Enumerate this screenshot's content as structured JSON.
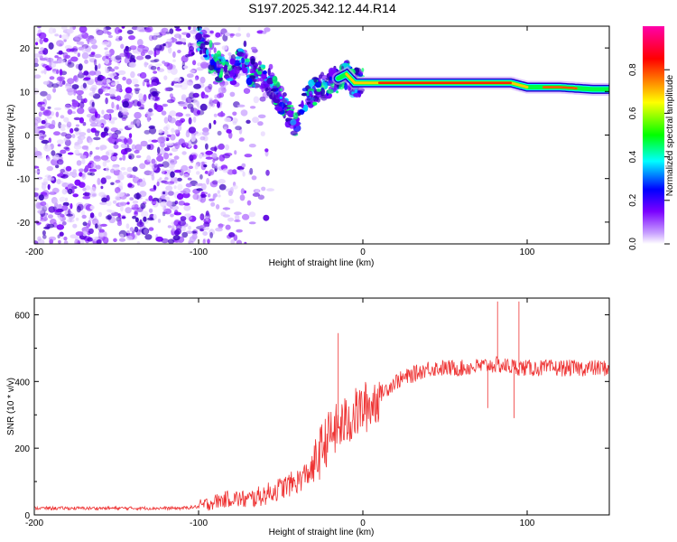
{
  "title": "S197.2025.342.12.44.R14",
  "chart_data": [
    {
      "type": "heatmap",
      "name": "spectrogram",
      "xlabel": "Height of straight line (km)",
      "ylabel": "Frequency (Hz)",
      "xlim": [
        -200,
        150
      ],
      "ylim": [
        -25,
        25
      ],
      "xticks": [
        -200,
        -100,
        0,
        100
      ],
      "yticks": [
        20,
        10,
        0,
        -10,
        -20
      ],
      "xtick_labels": [
        "-200",
        "-100",
        "0",
        "100"
      ],
      "ytick_labels": [
        "20",
        "10",
        "0",
        "-10",
        "-20"
      ],
      "noise_region": {
        "x_start": -200,
        "x_noise_edge": -100,
        "x_fade_end": -65
      },
      "signal_trace": [
        {
          "x": -100,
          "y": 22
        },
        {
          "x": -95,
          "y": 20
        },
        {
          "x": -90,
          "y": 16
        },
        {
          "x": -85,
          "y": 15
        },
        {
          "x": -80,
          "y": 14
        },
        {
          "x": -75,
          "y": 17
        },
        {
          "x": -70,
          "y": 15
        },
        {
          "x": -65,
          "y": 14
        },
        {
          "x": -60,
          "y": 13
        },
        {
          "x": -55,
          "y": 11
        },
        {
          "x": -50,
          "y": 8
        },
        {
          "x": -45,
          "y": 5
        },
        {
          "x": -40,
          "y": 2
        },
        {
          "x": -35,
          "y": 8
        },
        {
          "x": -30,
          "y": 10
        },
        {
          "x": -25,
          "y": 11
        },
        {
          "x": -20,
          "y": 12
        },
        {
          "x": -15,
          "y": 13
        },
        {
          "x": -10,
          "y": 14
        },
        {
          "x": -5,
          "y": 12
        },
        {
          "x": 0,
          "y": 12
        },
        {
          "x": 20,
          "y": 12
        },
        {
          "x": 50,
          "y": 12
        },
        {
          "x": 90,
          "y": 12
        },
        {
          "x": 100,
          "y": 11
        },
        {
          "x": 120,
          "y": 11
        },
        {
          "x": 140,
          "y": 10.5
        },
        {
          "x": 150,
          "y": 10.5
        }
      ],
      "colorbar": {
        "label": "Normalized spectral amplitude",
        "range": [
          0,
          1
        ],
        "ticks": [
          0.0,
          0.2,
          0.4,
          0.6,
          0.8
        ],
        "tick_labels": [
          "0.0",
          "0.2",
          "0.4",
          "0.6",
          "0.8"
        ],
        "colors": [
          "#ffffff",
          "#7a00ff",
          "#0000ff",
          "#00ffff",
          "#00ff00",
          "#ffff00",
          "#ff0000",
          "#ff00aa"
        ]
      }
    },
    {
      "type": "line",
      "name": "snr",
      "xlabel": "Height of straight line (km)",
      "ylabel": "SNR (10 * v/v)",
      "xlim": [
        -200,
        150
      ],
      "ylim": [
        0,
        650
      ],
      "xticks": [
        -200,
        -100,
        0,
        100
      ],
      "yticks": [
        0,
        200,
        400,
        600
      ],
      "xtick_labels": [
        "-200",
        "-100",
        "0",
        "100"
      ],
      "ytick_labels": [
        "0",
        "200",
        "400",
        "600"
      ],
      "line_color": "#ee3333",
      "envelope": [
        {
          "x": -200,
          "y": 20
        },
        {
          "x": -110,
          "y": 20
        },
        {
          "x": -100,
          "y": 25
        },
        {
          "x": -90,
          "y": 40
        },
        {
          "x": -80,
          "y": 50
        },
        {
          "x": -70,
          "y": 45
        },
        {
          "x": -60,
          "y": 60
        },
        {
          "x": -50,
          "y": 80
        },
        {
          "x": -40,
          "y": 100
        },
        {
          "x": -30,
          "y": 140
        },
        {
          "x": -25,
          "y": 200
        },
        {
          "x": -20,
          "y": 240
        },
        {
          "x": -15,
          "y": 260
        },
        {
          "x": -10,
          "y": 280
        },
        {
          "x": -5,
          "y": 300
        },
        {
          "x": 0,
          "y": 320
        },
        {
          "x": 5,
          "y": 330
        },
        {
          "x": 10,
          "y": 360
        },
        {
          "x": 20,
          "y": 400
        },
        {
          "x": 30,
          "y": 420
        },
        {
          "x": 40,
          "y": 440
        },
        {
          "x": 60,
          "y": 440
        },
        {
          "x": 80,
          "y": 450
        },
        {
          "x": 100,
          "y": 440
        },
        {
          "x": 120,
          "y": 440
        },
        {
          "x": 150,
          "y": 440
        }
      ],
      "spikes": [
        {
          "x": -15,
          "y": 545
        },
        {
          "x": 82,
          "y": 640
        },
        {
          "x": 95,
          "y": 640
        },
        {
          "x": 92,
          "y": 290
        },
        {
          "x": 76,
          "y": 320
        }
      ]
    }
  ]
}
